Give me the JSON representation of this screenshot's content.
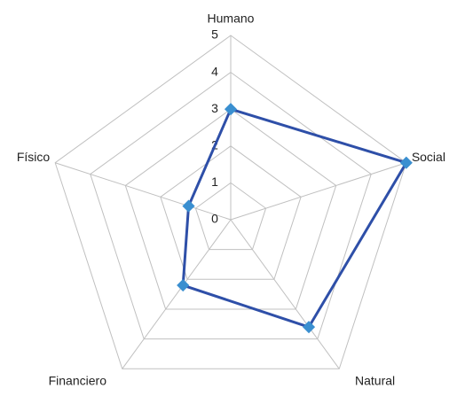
{
  "chart_data": {
    "type": "radar",
    "categories": [
      "Humano",
      "Social",
      "Natural",
      "Financiero",
      "Físico"
    ],
    "series": [
      {
        "color": "#2e4fa8",
        "marker_color": "#3a8fd0",
        "values": [
          3,
          5,
          3.6,
          2.2,
          1.2
        ]
      }
    ],
    "ylim": [
      0,
      5
    ],
    "yticks": [
      0,
      1,
      2,
      3,
      4,
      5
    ],
    "grid": true
  }
}
